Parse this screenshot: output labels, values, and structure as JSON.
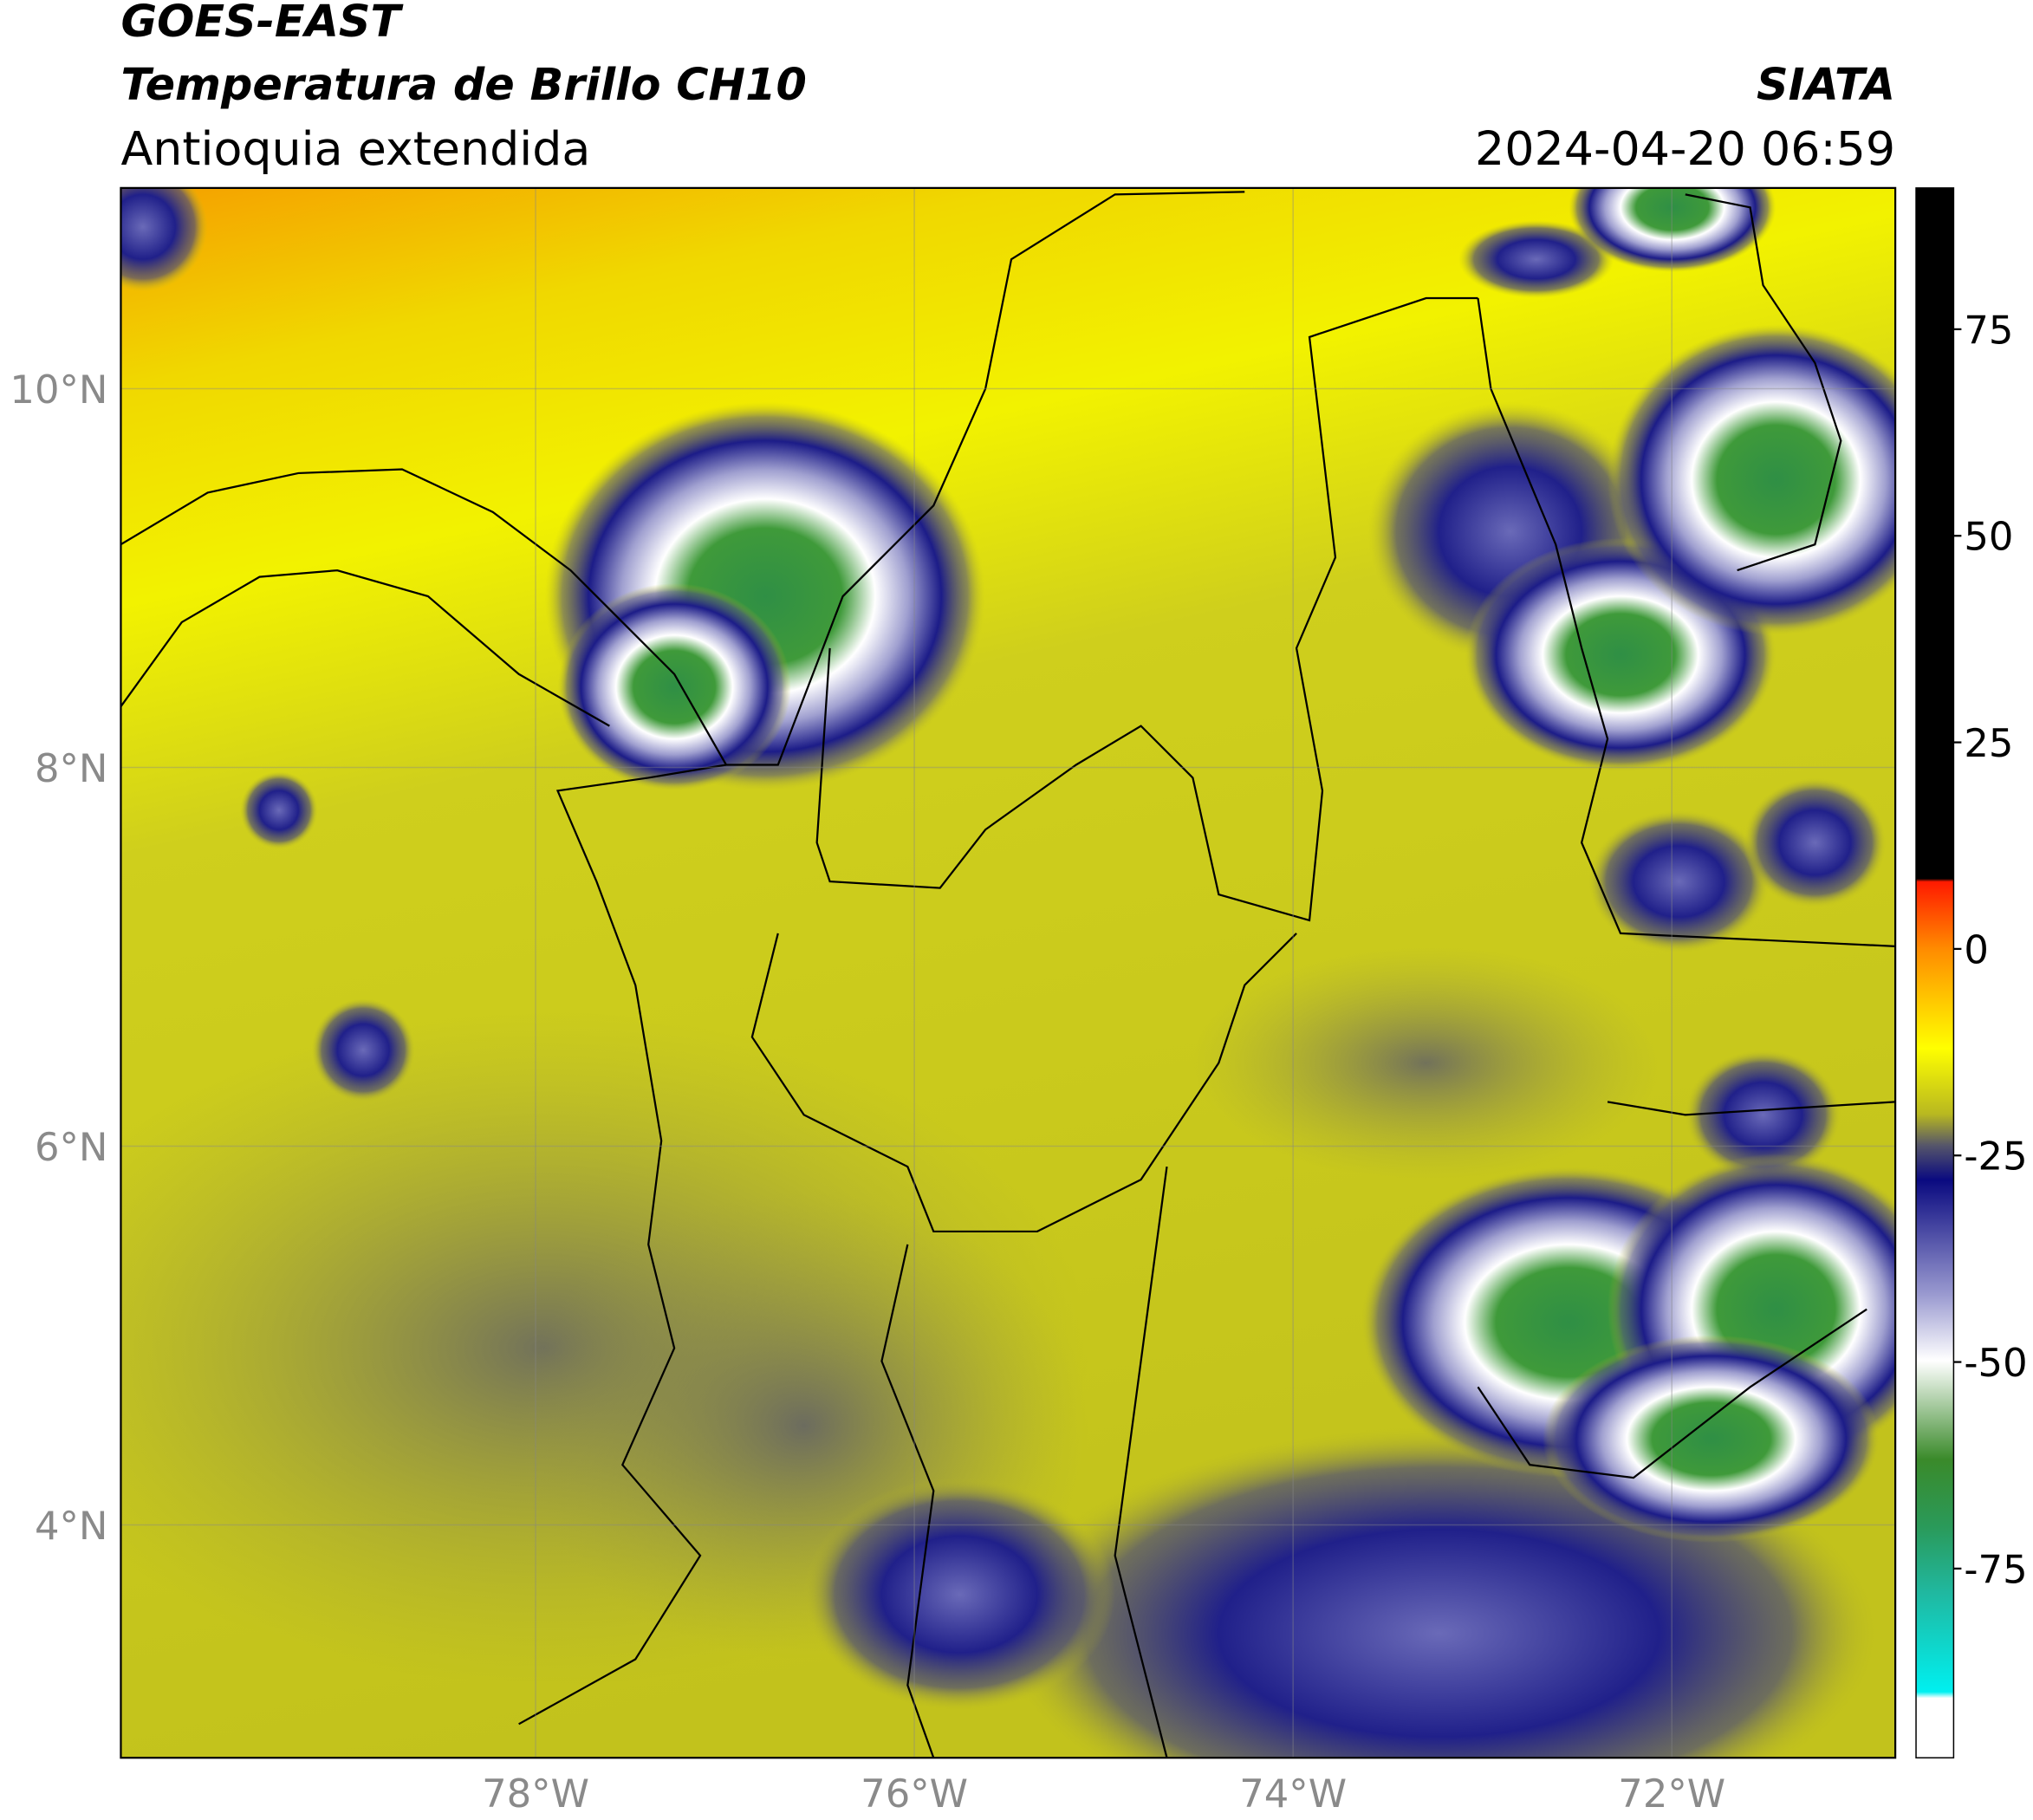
{
  "header": {
    "satellite": "GOES-EAST",
    "product": "Temperatura de Brillo CH10",
    "region": "Antioquia extendida",
    "source": "SIATA",
    "datetime": "2024-04-20 06:59"
  },
  "map": {
    "xlim": [
      -80.19,
      -70.82
    ],
    "ylim": [
      2.77,
      11.06
    ],
    "xticks": [
      {
        "value": -78,
        "label": "78°W"
      },
      {
        "value": -76,
        "label": "76°W"
      },
      {
        "value": -74,
        "label": "74°W"
      },
      {
        "value": -72,
        "label": "72°W"
      }
    ],
    "yticks": [
      {
        "value": 10,
        "label": "10°N"
      },
      {
        "value": 8,
        "label": "8°N"
      },
      {
        "value": 6,
        "label": "6°N"
      },
      {
        "value": 4,
        "label": "4°N"
      }
    ],
    "grid": true
  },
  "colorbar": {
    "clim": [
      -97.9,
      92.1
    ],
    "ticks": [
      75,
      50,
      25,
      0,
      -25,
      -50,
      -75
    ]
  }
}
